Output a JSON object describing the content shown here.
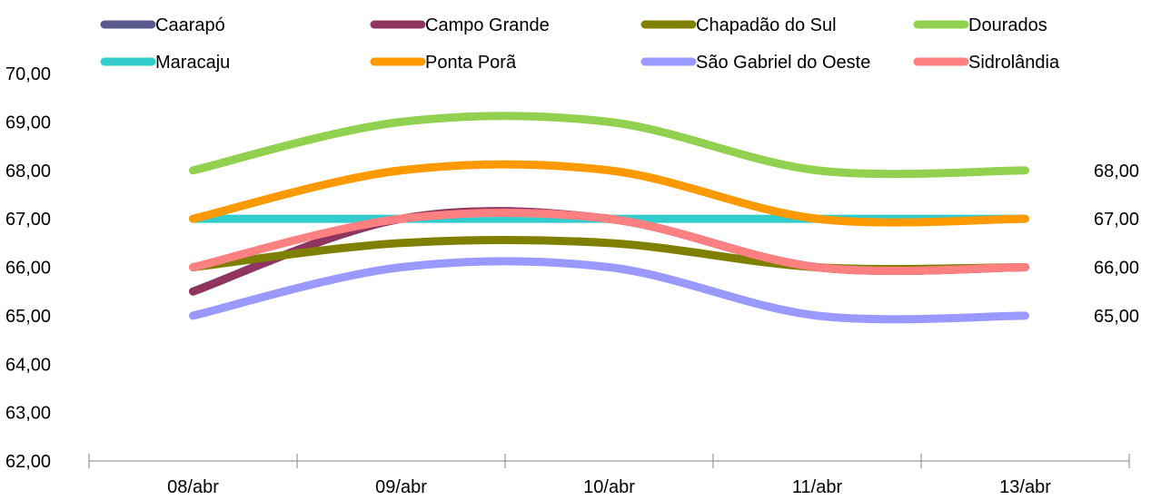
{
  "chart_data": {
    "type": "line",
    "categories": [
      "08/abr",
      "09/abr",
      "10/abr",
      "11/abr",
      "13/abr"
    ],
    "ylim": [
      62,
      70
    ],
    "yticks": [
      "62,00",
      "63,00",
      "64,00",
      "65,00",
      "66,00",
      "67,00",
      "68,00",
      "69,00",
      "70,00"
    ],
    "legend_position": "top",
    "smooth": true,
    "series": [
      {
        "name": "Caarapó",
        "color": "#5b5a8f",
        "values": [
          65.5,
          67,
          67,
          66,
          66
        ]
      },
      {
        "name": "Campo Grande",
        "color": "#8f3560",
        "values": [
          65.5,
          67,
          67,
          66,
          66
        ]
      },
      {
        "name": "Chapadão do Sul",
        "color": "#7f7f00",
        "values": [
          66,
          66.5,
          66.5,
          66,
          66
        ]
      },
      {
        "name": "Dourados",
        "color": "#92d050",
        "values": [
          68,
          69,
          69,
          68,
          68
        ]
      },
      {
        "name": "Maracaju",
        "color": "#33cccc",
        "values": [
          67,
          67,
          67,
          67,
          67
        ]
      },
      {
        "name": "Ponta Porã",
        "color": "#ff9900",
        "values": [
          67,
          68,
          68,
          67,
          67
        ]
      },
      {
        "name": "São Gabriel do Oeste",
        "color": "#9999ff",
        "values": [
          65,
          66,
          66,
          65,
          65
        ]
      },
      {
        "name": "Sidrolândia",
        "color": "#ff8080",
        "values": [
          66,
          67,
          67,
          66,
          66
        ]
      }
    ],
    "end_labels": [
      "68,00",
      "67,00",
      "66,00",
      "65,00"
    ]
  }
}
